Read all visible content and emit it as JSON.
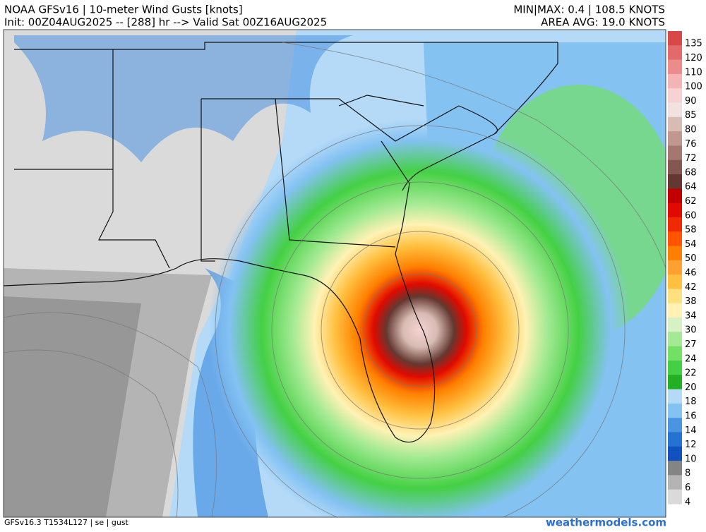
{
  "header": {
    "title": "NOAA GFSv16 | 10-meter Wind Gusts [knots]",
    "subtitle": "Init: 00Z04AUG2025 -- [288] hr --> Valid Sat 00Z16AUG2025",
    "stats": "MIN|MAX: 0.4 | 108.5 KNOTS",
    "average": "AREA AVG: 19.0 KNOTS"
  },
  "colorbar": [
    {
      "label": 135,
      "color": "#d94848"
    },
    {
      "label": 120,
      "color": "#e26a6a"
    },
    {
      "label": 110,
      "color": "#ea8c8c"
    },
    {
      "label": 100,
      "color": "#f2b4b4"
    },
    {
      "label": 90,
      "color": "#f6d2d2"
    },
    {
      "label": 85,
      "color": "#efe2e0"
    },
    {
      "label": 80,
      "color": "#d8bcb4"
    },
    {
      "label": 76,
      "color": "#c09890"
    },
    {
      "label": 72,
      "color": "#a47870"
    },
    {
      "label": 68,
      "color": "#845850"
    },
    {
      "label": 64,
      "color": "#643830"
    },
    {
      "label": 62,
      "color": "#c00000"
    },
    {
      "label": 60,
      "color": "#e00a00"
    },
    {
      "label": 58,
      "color": "#f02a00"
    },
    {
      "label": 54,
      "color": "#ff5500"
    },
    {
      "label": 50,
      "color": "#ff8000"
    },
    {
      "label": 46,
      "color": "#ffa030"
    },
    {
      "label": 42,
      "color": "#ffc040"
    },
    {
      "label": 38,
      "color": "#ffe080"
    },
    {
      "label": 34,
      "color": "#fff2b4"
    },
    {
      "label": 30,
      "color": "#d6f2c4"
    },
    {
      "label": 27,
      "color": "#a4ea94"
    },
    {
      "label": 24,
      "color": "#72e064"
    },
    {
      "label": 22,
      "color": "#44d044"
    },
    {
      "label": 20,
      "color": "#22b022"
    },
    {
      "label": 18,
      "color": "#b4daf8"
    },
    {
      "label": 16,
      "color": "#84c2f2"
    },
    {
      "label": 14,
      "color": "#4a94e2"
    },
    {
      "label": 12,
      "color": "#2472d2"
    },
    {
      "label": 10,
      "color": "#1252c0"
    },
    {
      "label": 8,
      "color": "#848484"
    },
    {
      "label": 6,
      "color": "#b4b4b4"
    },
    {
      "label": 4,
      "color": "#dadada"
    }
  ],
  "footer": {
    "model": "GFSv16.3 T1534L127 | se | gust",
    "site": "weathermodels.com"
  }
}
